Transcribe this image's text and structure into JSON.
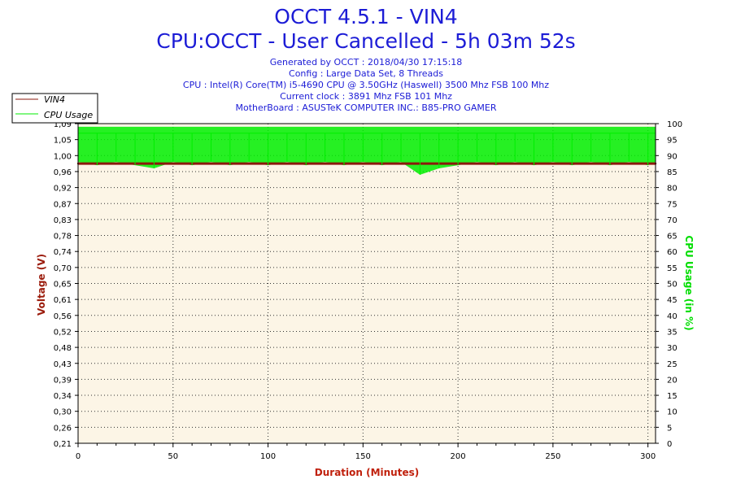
{
  "header": {
    "title": "OCCT 4.5.1 - VIN4",
    "subtitle": "CPU:OCCT - User Cancelled - 5h 03m 52s",
    "info": [
      "Generated by OCCT : 2018/04/30 17:15:18",
      "Config : Large Data Set, 8 Threads",
      "CPU : Intel(R) Core(TM) i5-4690 CPU @ 3.50GHz (Haswell) 3500 Mhz FSB 100 Mhz",
      "Current clock : 3891 Mhz FSB 101 Mhz",
      "MotherBoard : ASUSTeK COMPUTER INC.: B85-PRO GAMER"
    ]
  },
  "colors": {
    "title": "#1c1cd6",
    "plot_bg": "#fcf5e6",
    "vin4": "#8b1a0c",
    "cpu": "#00ee00",
    "left_axis_label": "#9b1c0c",
    "right_axis_label": "#00dd00",
    "x_axis_label": "#c0200c"
  },
  "chart_data": {
    "type": "line",
    "xlabel": "Duration (Minutes)",
    "ylabel": "Voltage (V)",
    "y2label": "CPU Usage (in %)",
    "xlim": [
      0,
      304
    ],
    "ylim": [
      0.21,
      1.09
    ],
    "y2lim": [
      0,
      100
    ],
    "x_ticks": [
      "0",
      "50",
      "100",
      "150",
      "200",
      "250",
      "300"
    ],
    "y_ticks": [
      "0,21",
      "0,26",
      "0,30",
      "0,34",
      "0,39",
      "0,43",
      "0,48",
      "0,52",
      "0,56",
      "0,61",
      "0,65",
      "0,70",
      "0,74",
      "0,78",
      "0,83",
      "0,87",
      "0,92",
      "0,96",
      "1,00",
      "1,05",
      "1,09"
    ],
    "y2_ticks": [
      "0",
      "5",
      "10",
      "15",
      "20",
      "25",
      "30",
      "35",
      "40",
      "45",
      "50",
      "55",
      "60",
      "65",
      "70",
      "75",
      "80",
      "85",
      "90",
      "95",
      "100"
    ],
    "grid": true,
    "legend_position": "top-left",
    "series": [
      {
        "name": "VIN4",
        "axis": "left",
        "x": [
          0,
          10,
          20,
          30,
          40,
          50,
          60,
          70,
          80,
          90,
          100,
          110,
          120,
          130,
          140,
          150,
          160,
          170,
          180,
          190,
          200,
          210,
          220,
          230,
          240,
          250,
          260,
          270,
          280,
          290,
          300,
          304
        ],
        "values": [
          0.98,
          0.98,
          0.98,
          0.98,
          0.98,
          0.98,
          0.98,
          0.98,
          0.98,
          0.98,
          0.98,
          0.98,
          0.98,
          0.98,
          0.98,
          0.98,
          0.98,
          0.98,
          0.98,
          0.98,
          0.98,
          0.98,
          0.98,
          0.98,
          0.98,
          0.98,
          0.98,
          0.98,
          0.98,
          0.98,
          0.98,
          0.98
        ]
      },
      {
        "name": "CPU Usage",
        "axis": "right",
        "x": [
          0,
          10,
          20,
          30,
          40,
          50,
          60,
          70,
          80,
          90,
          100,
          110,
          120,
          130,
          140,
          150,
          160,
          170,
          180,
          190,
          200,
          210,
          220,
          230,
          240,
          250,
          260,
          270,
          280,
          290,
          300,
          304
        ],
        "values": [
          97,
          97,
          97,
          97,
          97,
          97,
          97,
          97,
          97,
          97,
          97,
          97,
          97,
          97,
          97,
          97,
          97,
          97,
          97,
          97,
          97,
          97,
          97,
          97,
          97,
          97,
          97,
          97,
          97,
          97,
          97,
          97
        ],
        "min_values": [
          88,
          87,
          88,
          87,
          86,
          88,
          87,
          88,
          87,
          88,
          87,
          88,
          87,
          88,
          87,
          88,
          87,
          88,
          84,
          86,
          87,
          88,
          87,
          88,
          87,
          88,
          87,
          88,
          87,
          88,
          87,
          88
        ]
      }
    ]
  }
}
